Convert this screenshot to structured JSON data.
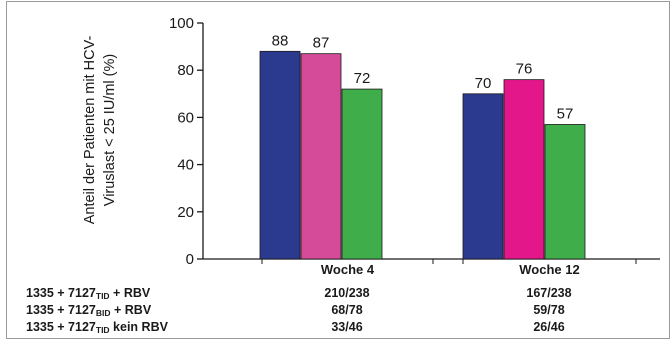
{
  "chart_data": {
    "type": "bar",
    "ylabel_line1": "Anteil der Patienten mit HCV-",
    "ylabel_line2": "Viruslast < 25 IU/ml (%)",
    "ylim": [
      0,
      100
    ],
    "yticks": [
      0,
      20,
      40,
      60,
      80,
      100
    ],
    "categories": [
      "Woche 4",
      "Woche 12"
    ],
    "series": [
      {
        "values": [
          88,
          70
        ],
        "color": "#2b3a8f"
      },
      {
        "values": [
          87,
          76
        ],
        "color_w4": "#d64a9a",
        "color": "#e3168a"
      },
      {
        "values": [
          72,
          57
        ],
        "color": "#3fae4a"
      }
    ],
    "value_labels": [
      [
        "88",
        "87",
        "72"
      ],
      [
        "70",
        "76",
        "57"
      ]
    ]
  },
  "table": {
    "rows": [
      {
        "label_pre": "1335 + 7127",
        "label_sub": "TID",
        "label_post": " + RBV",
        "w4": "210/238",
        "w12": "167/238"
      },
      {
        "label_pre": "1335 + 7127",
        "label_sub": "BID",
        "label_post": " + RBV",
        "w4": "68/78",
        "w12": "59/78"
      },
      {
        "label_pre": "1335 + 7127",
        "label_sub": "TID",
        "label_post": " kein RBV",
        "w4": "33/46",
        "w12": "26/46"
      }
    ]
  }
}
